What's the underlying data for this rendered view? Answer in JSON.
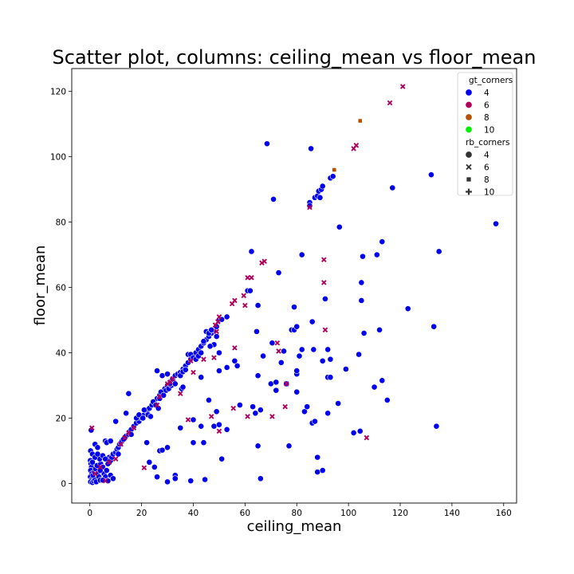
{
  "chart_data": {
    "type": "scatter",
    "title": "Scatter plot, columns: ceiling_mean vs floor_mean",
    "xlabel": "ceiling_mean",
    "ylabel": "floor_mean",
    "xlim": [
      -7,
      165
    ],
    "ylim": [
      -6,
      127
    ],
    "xticks": [
      0,
      20,
      40,
      60,
      80,
      100,
      120,
      140,
      160
    ],
    "yticks": [
      0,
      20,
      40,
      60,
      80,
      100,
      120
    ],
    "grid": false,
    "legend": {
      "placement": "top-right",
      "hue_title": "gt_corners",
      "hue_entries": [
        {
          "label": "4",
          "color": "#0000ee"
        },
        {
          "label": "6",
          "color": "#b0005a"
        },
        {
          "label": "8",
          "color": "#b85000"
        },
        {
          "label": "10",
          "color": "#00ee00"
        }
      ],
      "style_title": "rb_corners",
      "style_entries": [
        {
          "label": "4",
          "marker": "circle"
        },
        {
          "label": "6",
          "marker": "x"
        },
        {
          "label": "8",
          "marker": "square"
        },
        {
          "label": "10",
          "marker": "plus"
        }
      ]
    },
    "series": [
      {
        "gt_corners": "4",
        "rb_corners": "4",
        "color": "#0000ee",
        "marker": "circle",
        "points": [
          [
            0.5,
            16.3
          ],
          [
            0.3,
            10
          ],
          [
            0.2,
            7
          ],
          [
            0.4,
            6
          ],
          [
            0.6,
            5
          ],
          [
            0.3,
            4
          ],
          [
            0.8,
            3
          ],
          [
            0.2,
            2
          ],
          [
            0.5,
            1
          ],
          [
            0.3,
            0.5
          ],
          [
            1,
            0.3
          ],
          [
            1.5,
            0.8
          ],
          [
            2,
            1.2
          ],
          [
            2.5,
            0.5
          ],
          [
            1.2,
            2.5
          ],
          [
            1.8,
            3.5
          ],
          [
            2.2,
            4.5
          ],
          [
            3,
            3
          ],
          [
            2.8,
            5.5
          ],
          [
            1,
            6.5
          ],
          [
            3.5,
            2
          ],
          [
            4,
            1
          ],
          [
            4.2,
            6
          ],
          [
            3.8,
            7.5
          ],
          [
            5,
            5
          ],
          [
            5.5,
            3
          ],
          [
            6,
            2
          ],
          [
            6.5,
            4
          ],
          [
            7,
            6
          ],
          [
            7.5,
            8
          ],
          [
            5,
            8.5
          ],
          [
            6,
            7.5
          ],
          [
            8,
            7
          ],
          [
            8.5,
            8
          ],
          [
            9,
            9
          ],
          [
            10,
            9.5
          ],
          [
            10.5,
            10.5
          ],
          [
            11,
            11
          ],
          [
            11.5,
            12
          ],
          [
            12,
            12.5
          ],
          [
            12.5,
            13
          ],
          [
            13,
            13.5
          ],
          [
            14,
            14.5
          ],
          [
            15,
            15
          ],
          [
            15.5,
            16
          ],
          [
            16,
            16.5
          ],
          [
            17,
            17.5
          ],
          [
            18,
            18.5
          ],
          [
            19,
            19
          ],
          [
            20,
            20
          ],
          [
            21,
            21
          ],
          [
            22,
            22
          ],
          [
            23,
            23
          ],
          [
            24,
            24
          ],
          [
            25,
            25
          ],
          [
            26,
            26
          ],
          [
            27,
            27
          ],
          [
            28,
            28
          ],
          [
            29,
            29
          ],
          [
            30,
            30
          ],
          [
            31,
            31
          ],
          [
            32,
            32
          ],
          [
            33,
            33
          ],
          [
            34,
            33.5
          ],
          [
            35,
            34
          ],
          [
            36,
            35
          ],
          [
            37,
            36
          ],
          [
            38,
            37
          ],
          [
            39,
            38
          ],
          [
            40,
            39
          ],
          [
            41,
            40
          ],
          [
            42,
            41
          ],
          [
            43,
            42
          ],
          [
            44,
            43
          ],
          [
            45,
            44
          ],
          [
            46,
            45
          ],
          [
            47,
            46
          ],
          [
            48,
            47
          ],
          [
            49,
            48
          ],
          [
            50,
            50
          ],
          [
            2,
            12
          ],
          [
            3,
            11
          ],
          [
            6,
            13
          ],
          [
            6.5,
            12.5
          ],
          [
            8,
            13
          ],
          [
            10,
            19
          ],
          [
            15,
            27.5
          ],
          [
            14,
            21.5
          ],
          [
            16,
            15
          ],
          [
            11,
            9
          ],
          [
            5,
            1
          ],
          [
            7,
            0.8
          ],
          [
            8,
            2.5
          ],
          [
            9,
            1.5
          ],
          [
            1,
            9
          ],
          [
            4,
            4
          ],
          [
            2,
            8
          ],
          [
            3,
            9
          ],
          [
            18,
            20
          ],
          [
            19,
            21
          ],
          [
            20.5,
            20
          ],
          [
            21,
            22.5
          ],
          [
            22.5,
            21
          ],
          [
            23.5,
            20.5
          ],
          [
            24.5,
            25
          ],
          [
            25.5,
            24
          ],
          [
            26.5,
            23
          ],
          [
            27,
            26
          ],
          [
            27.5,
            28
          ],
          [
            28.5,
            27
          ],
          [
            29.5,
            28.5
          ],
          [
            30.5,
            29
          ],
          [
            31.5,
            30
          ],
          [
            32.5,
            31
          ],
          [
            26,
            34.5
          ],
          [
            28,
            33
          ],
          [
            30,
            33.5
          ],
          [
            31,
            30.5
          ],
          [
            33,
            30.5
          ],
          [
            35,
            33
          ],
          [
            36,
            34.2
          ],
          [
            37,
            34.8
          ],
          [
            38,
            39.5
          ],
          [
            39,
            39.5
          ],
          [
            40,
            38.5
          ],
          [
            41,
            38
          ],
          [
            42,
            39
          ],
          [
            43,
            40
          ],
          [
            44,
            43.5
          ],
          [
            45,
            46.5
          ],
          [
            46,
            46
          ],
          [
            47,
            47
          ],
          [
            48,
            42.5
          ],
          [
            49,
            45
          ],
          [
            51,
            50.2
          ],
          [
            53,
            51
          ],
          [
            22,
            12.5
          ],
          [
            23,
            6.5
          ],
          [
            25,
            5
          ],
          [
            26,
            2
          ],
          [
            27,
            10
          ],
          [
            28,
            10.2
          ],
          [
            30,
            11
          ],
          [
            30,
            0.5
          ],
          [
            33,
            2.5
          ],
          [
            33,
            1.5
          ],
          [
            35,
            17
          ],
          [
            35.5,
            29
          ],
          [
            36,
            29.5
          ],
          [
            39,
            0.8
          ],
          [
            40,
            12.5
          ],
          [
            40,
            19.5
          ],
          [
            43,
            17.5
          ],
          [
            43,
            32.5
          ],
          [
            44,
            12.5
          ],
          [
            44.5,
            1.2
          ],
          [
            46,
            25.5
          ],
          [
            46.5,
            42
          ],
          [
            48,
            17.5
          ],
          [
            49,
            22
          ],
          [
            50,
            18
          ],
          [
            50,
            34.5
          ],
          [
            50,
            40
          ],
          [
            51,
            7.5
          ],
          [
            53,
            16.5
          ],
          [
            53,
            35.5
          ],
          [
            56,
            37.5
          ],
          [
            57,
            36
          ],
          [
            58,
            24
          ],
          [
            61,
            59
          ],
          [
            62,
            59
          ],
          [
            62.5,
            71
          ],
          [
            63,
            23.5
          ],
          [
            64,
            21.5
          ],
          [
            64.5,
            46.5
          ],
          [
            65,
            33
          ],
          [
            65,
            54.5
          ],
          [
            65,
            11.5
          ],
          [
            66,
            22.5
          ],
          [
            66,
            1.5
          ],
          [
            67,
            39
          ],
          [
            68.5,
            104
          ],
          [
            70,
            30.5
          ],
          [
            70.5,
            43
          ],
          [
            71,
            87
          ],
          [
            72,
            31
          ],
          [
            72,
            28.5
          ],
          [
            73,
            64.5
          ],
          [
            74,
            37
          ],
          [
            75,
            40.5
          ],
          [
            76,
            30.5
          ],
          [
            77,
            11.5
          ],
          [
            78,
            47
          ],
          [
            79,
            54
          ],
          [
            79,
            47
          ],
          [
            80,
            33.5
          ],
          [
            80,
            34.5
          ],
          [
            80,
            28
          ],
          [
            80,
            48
          ],
          [
            81,
            39
          ],
          [
            82,
            70
          ],
          [
            82,
            41
          ],
          [
            83,
            22
          ],
          [
            84,
            23.5
          ],
          [
            85,
            86
          ],
          [
            85,
            85
          ],
          [
            85.5,
            102.5
          ],
          [
            86,
            49.5
          ],
          [
            86,
            18.5
          ],
          [
            86.5,
            41
          ],
          [
            87,
            19
          ],
          [
            87,
            87.5
          ],
          [
            88,
            88
          ],
          [
            88,
            8
          ],
          [
            88,
            3.5
          ],
          [
            88.5,
            89.5
          ],
          [
            89,
            87.5
          ],
          [
            89.5,
            90
          ],
          [
            90,
            37.5
          ],
          [
            90,
            91
          ],
          [
            90,
            4
          ],
          [
            91,
            56.5
          ],
          [
            92,
            21.5
          ],
          [
            92,
            41
          ],
          [
            92,
            32.5
          ],
          [
            93,
            32.5
          ],
          [
            93,
            38
          ],
          [
            93,
            93.5
          ],
          [
            94,
            94
          ],
          [
            96,
            24.5
          ],
          [
            96.5,
            78.5
          ],
          [
            99,
            35
          ],
          [
            102,
            15.5
          ],
          [
            104,
            39.5
          ],
          [
            104.5,
            16
          ],
          [
            105,
            61.5
          ],
          [
            105,
            56
          ],
          [
            105.5,
            69.5
          ],
          [
            106,
            46
          ],
          [
            110,
            29.5
          ],
          [
            111,
            70
          ],
          [
            112,
            47
          ],
          [
            113,
            31.5
          ],
          [
            113,
            74
          ],
          [
            115,
            25.5
          ],
          [
            117,
            90.5
          ],
          [
            123,
            53.5
          ],
          [
            132,
            94.5
          ],
          [
            133,
            48
          ],
          [
            134,
            17.5
          ],
          [
            135,
            71
          ],
          [
            157,
            79.5
          ]
        ]
      },
      {
        "gt_corners": "6",
        "rb_corners": "6",
        "color": "#b0005a",
        "marker": "x",
        "points": [
          [
            0.8,
            17
          ],
          [
            2,
            3
          ],
          [
            4,
            5
          ],
          [
            6,
            0.8
          ],
          [
            7.5,
            6.5
          ],
          [
            10,
            7.5
          ],
          [
            12,
            12
          ],
          [
            13.5,
            14
          ],
          [
            15,
            15.5
          ],
          [
            17,
            17
          ],
          [
            21,
            4.8
          ],
          [
            26,
            24
          ],
          [
            27,
            26.5
          ],
          [
            30,
            30.5
          ],
          [
            31,
            31
          ],
          [
            32,
            32
          ],
          [
            35,
            27.5
          ],
          [
            38,
            19.5
          ],
          [
            39,
            37.5
          ],
          [
            40,
            34
          ],
          [
            44,
            38
          ],
          [
            47,
            20.5
          ],
          [
            48,
            38.5
          ],
          [
            48.5,
            48.5
          ],
          [
            49,
            46.5
          ],
          [
            49.5,
            49.5
          ],
          [
            50,
            51
          ],
          [
            50,
            16
          ],
          [
            55,
            55
          ],
          [
            55.5,
            23
          ],
          [
            56,
            56
          ],
          [
            56,
            41.5
          ],
          [
            59.5,
            57.5
          ],
          [
            60,
            54.5
          ],
          [
            61,
            20.5
          ],
          [
            61,
            63
          ],
          [
            62.5,
            63
          ],
          [
            66.5,
            67.5
          ],
          [
            67.5,
            68
          ],
          [
            70.5,
            20.5
          ],
          [
            72.5,
            43
          ],
          [
            73,
            40.5
          ],
          [
            75.5,
            23.5
          ],
          [
            76,
            30.5
          ],
          [
            85,
            84.5
          ],
          [
            90.5,
            68.5
          ],
          [
            90.5,
            61.5
          ],
          [
            91,
            47
          ],
          [
            102,
            102.5
          ],
          [
            103,
            103.5
          ],
          [
            107,
            14
          ],
          [
            116,
            116.5
          ],
          [
            121,
            121.5
          ]
        ]
      },
      {
        "gt_corners": "8",
        "rb_corners": "8",
        "color": "#b85000",
        "marker": "square",
        "points": [
          [
            104.5,
            111
          ],
          [
            94.5,
            96
          ]
        ]
      }
    ]
  }
}
